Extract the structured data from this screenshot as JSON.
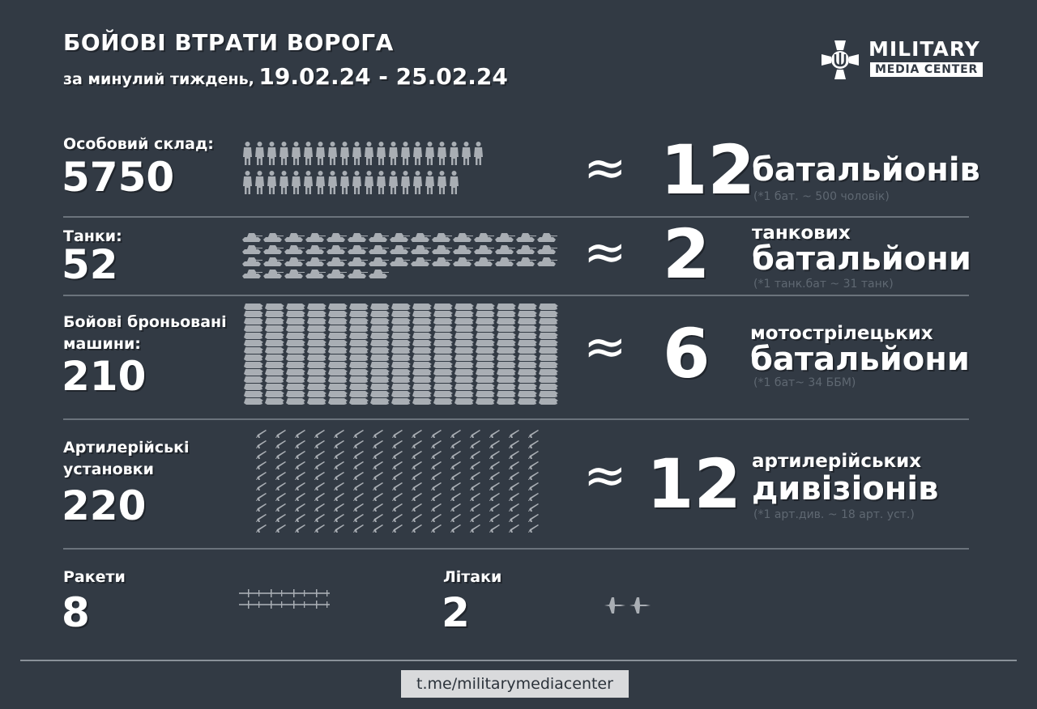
{
  "header": {
    "title": "БОЙОВІ ВТРАТИ ВОРОГА",
    "subtitle_prefix": "за минулий тиждень,",
    "date_range": "19.02.24 - 25.02.24"
  },
  "logo": {
    "line1": "MILITARY",
    "line2": "MEDIA CENTER",
    "icon": "trident-cross-icon"
  },
  "colors": {
    "background": "#323a44",
    "icons": "#a9aeb4",
    "divider": "#6b737c",
    "note": "#5f6872",
    "link_bg": "#d9dadc"
  },
  "approx_symbol": "≈",
  "sections": [
    {
      "label": "Особовий склад:",
      "value": "5750",
      "equiv": "12",
      "unit_small": "",
      "unit_large": "батальйонів",
      "note": "(*1 бат. ~ 500 чоловік)",
      "icon": "soldier-icon"
    },
    {
      "label": "Танки:",
      "value": "52",
      "equiv": "2",
      "unit_small": "танкових",
      "unit_large": "батальйони",
      "note": "(*1 танк.бат ~ 31 танк)",
      "icon": "tank-icon"
    },
    {
      "label": "Бойові броньовані",
      "label2": "машини:",
      "value": "210",
      "equiv": "6",
      "unit_small": "мотострілецьких",
      "unit_large": "батальйони",
      "note": "(*1 бат~ 34 ББМ)",
      "icon": "armored-vehicle-icon"
    },
    {
      "label": "Артилерійські",
      "label2": "установки",
      "value": "220",
      "equiv": "12",
      "unit_small": "артилерійських",
      "unit_large": "дивізіонів",
      "note": "(*1 арт.див. ~ 18 арт. уст.)",
      "icon": "artillery-icon"
    }
  ],
  "bottom": [
    {
      "label": "Ракети",
      "value": "8",
      "icon": "missile-icon"
    },
    {
      "label": "Літаки",
      "value": "2",
      "icon": "jet-icon"
    }
  ],
  "footer": {
    "link": "t.me/militarymediacenter"
  }
}
